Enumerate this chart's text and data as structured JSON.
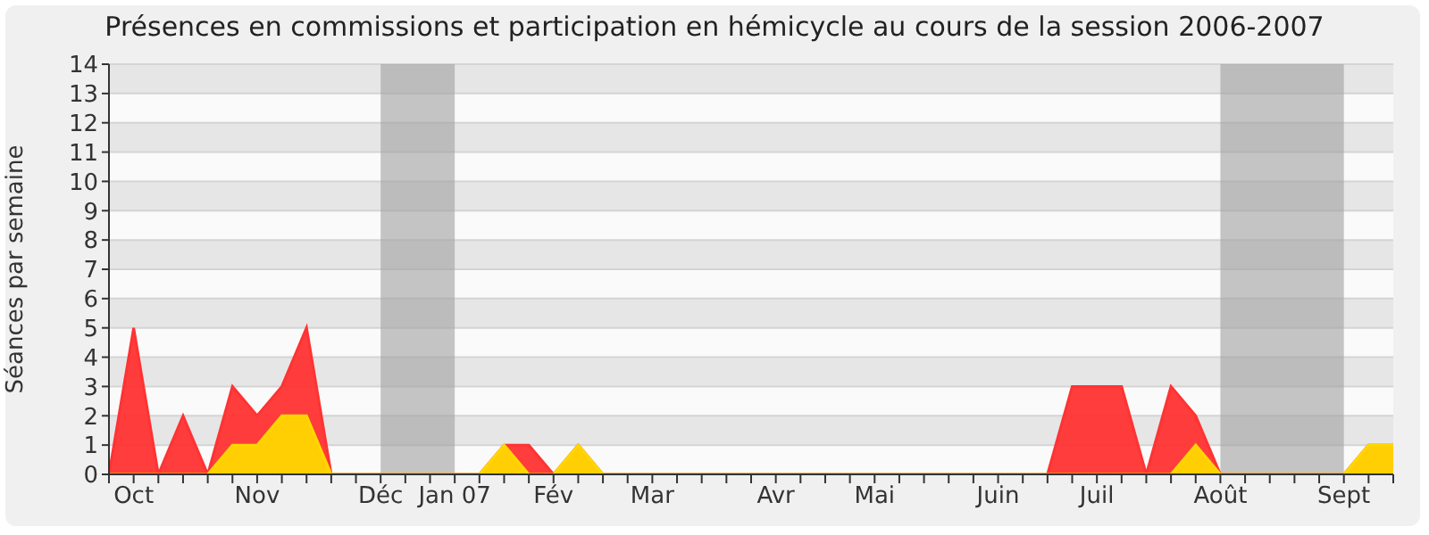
{
  "chart_data": {
    "type": "area",
    "title": "Présences en commissions et participation en hémicycle au cours de la session 2006-2007",
    "ylabel": "Séances par semaine",
    "categories": [
      null,
      "Oct",
      null,
      null,
      null,
      null,
      "Nov",
      null,
      null,
      null,
      null,
      "Déc",
      null,
      null,
      "Jan 07",
      null,
      null,
      null,
      "Fév",
      null,
      null,
      null,
      "Mar",
      null,
      null,
      null,
      null,
      "Avr",
      null,
      null,
      null,
      "Mai",
      null,
      null,
      null,
      null,
      "Juin",
      null,
      null,
      null,
      "Juil",
      null,
      null,
      null,
      null,
      "Août",
      null,
      null,
      null,
      null,
      "Sept",
      null,
      null
    ],
    "series": [
      {
        "color": "#ff3333",
        "values": [
          0,
          5,
          0,
          2,
          0,
          3,
          2,
          3,
          5,
          0,
          0,
          0,
          0,
          0,
          0,
          0,
          1,
          1,
          0,
          1,
          0,
          0,
          0,
          0,
          0,
          0,
          0,
          0,
          0,
          0,
          0,
          0,
          0,
          0,
          0,
          0,
          0,
          0,
          0,
          3,
          3,
          3,
          0,
          3,
          2,
          0,
          0,
          0,
          0,
          0,
          0,
          1,
          1
        ]
      },
      {
        "color": "#ffd700",
        "values": [
          0,
          0,
          0,
          0,
          0,
          1,
          1,
          2,
          2,
          0,
          0,
          0,
          0,
          0,
          0,
          0,
          1,
          0,
          0,
          1,
          0,
          0,
          0,
          0,
          0,
          0,
          0,
          0,
          0,
          0,
          0,
          0,
          0,
          0,
          0,
          0,
          0,
          0,
          0,
          0,
          0,
          0,
          0,
          0,
          1,
          0,
          0,
          0,
          0,
          0,
          0,
          1,
          1
        ]
      }
    ],
    "ylim": [
      0,
      14
    ],
    "yticks": [
      0,
      1,
      2,
      3,
      4,
      5,
      6,
      7,
      8,
      9,
      10,
      11,
      12,
      13,
      14
    ],
    "grid": "y",
    "bands": [
      {
        "axis": "x",
        "from": "Déc",
        "to": "Jan 07",
        "color": "#a0a0a0"
      },
      {
        "axis": "x",
        "from": "Août",
        "to": "Sept",
        "color": "#a0a0a0"
      }
    ]
  }
}
